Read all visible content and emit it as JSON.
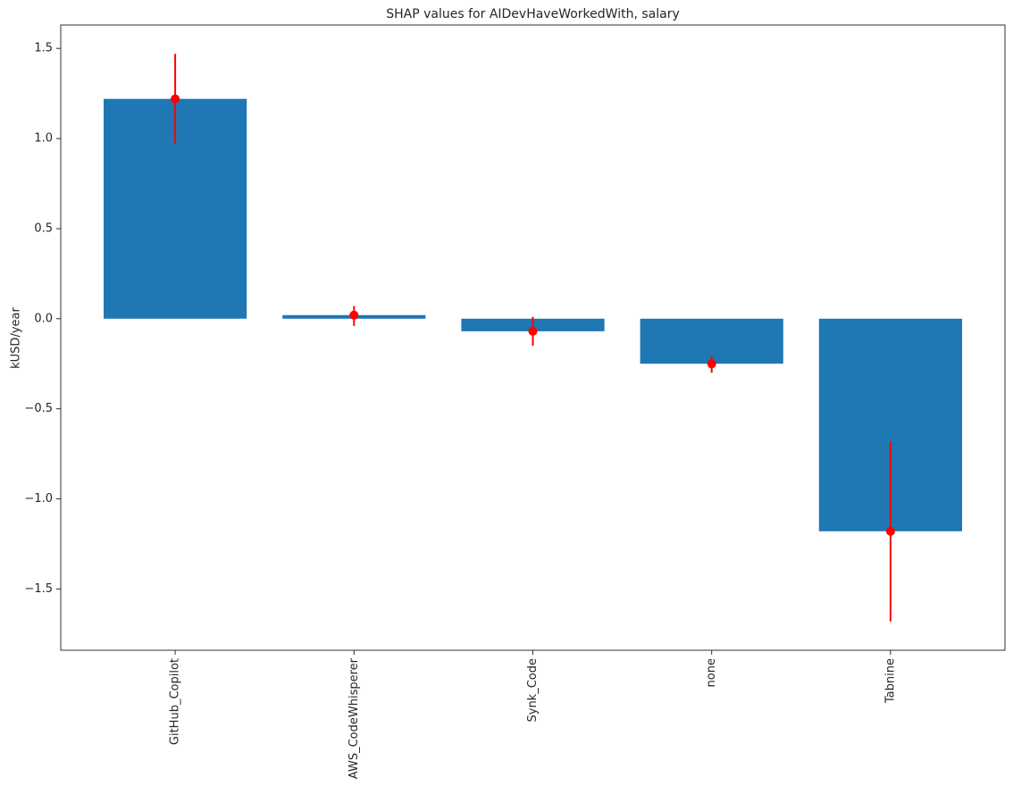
{
  "chart_data": {
    "type": "bar",
    "title": "SHAP values for AIDevHaveWorkedWith, salary",
    "xlabel": "",
    "ylabel": "kUSD/year",
    "categories": [
      "GitHub_Copilot",
      "AWS_CodeWhisperer",
      "Synk_Code",
      "none",
      "Tabnine"
    ],
    "series": [
      {
        "name": "mean SHAP value (bar)",
        "type": "bar",
        "values": [
          1.22,
          0.02,
          -0.07,
          -0.25,
          -1.18
        ],
        "color": "#1f77b4"
      },
      {
        "name": "point estimate with error bars",
        "type": "scatter_with_error",
        "values": [
          1.22,
          0.02,
          -0.07,
          -0.25,
          -1.18
        ],
        "error_low": [
          0.97,
          -0.04,
          -0.15,
          -0.3,
          -1.68
        ],
        "error_high": [
          1.47,
          0.07,
          0.01,
          -0.21,
          -0.68
        ],
        "color": "#ff0000"
      }
    ],
    "bar_width": 0.8,
    "xlim": [
      -0.64,
      4.64
    ],
    "ylim": [
      -1.84,
      1.63
    ],
    "yticks": [
      1.5,
      1.0,
      0.5,
      0.0,
      -0.5,
      -1.0,
      -1.5
    ],
    "ytick_labels": [
      "1.5",
      "1.0",
      "0.5",
      "0.0",
      "−0.5",
      "−1.0",
      "−1.5"
    ],
    "grid": false,
    "legend": null,
    "axis_color": "#303030",
    "text_color": "#262626",
    "background": "#ffffff"
  }
}
